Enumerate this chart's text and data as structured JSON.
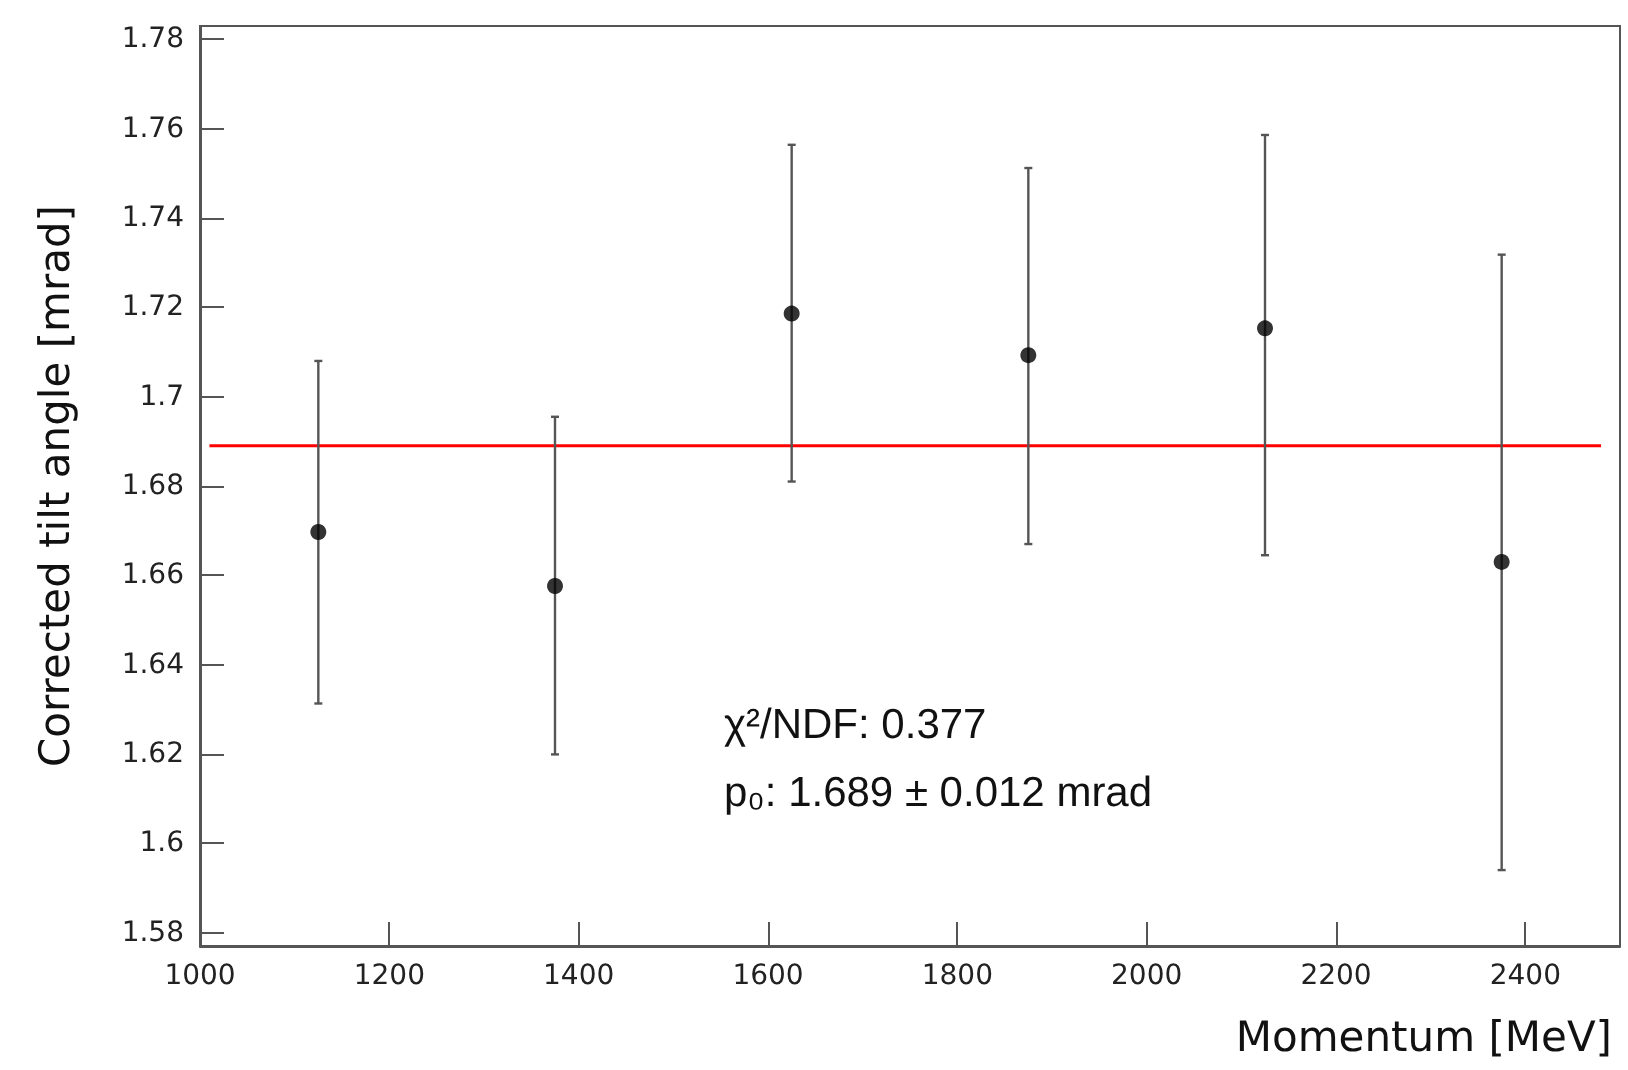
{
  "chart_data": {
    "type": "scatter",
    "xlabel": "Momentum [MeV]",
    "ylabel": "Corrected tilt angle [mrad]",
    "xlim": [
      1000,
      2500
    ],
    "xticks": [
      1000,
      1200,
      1400,
      1600,
      1800,
      2000,
      2200,
      2400
    ],
    "ylim": [
      1.577,
      1.783
    ],
    "yticks": [
      1.58,
      1.6,
      1.62,
      1.64,
      1.66,
      1.68,
      1.7,
      1.72,
      1.74,
      1.76,
      1.78
    ],
    "grid": false,
    "marker": "circle",
    "series": [
      {
        "color": "#000000",
        "x": [
          1125,
          1375,
          1625,
          1875,
          2125,
          2375
        ],
        "values": [
          1.6697,
          1.6576,
          1.7186,
          1.7093,
          1.7153,
          1.663
        ],
        "errors": [
          [
            1.6313,
            1.708
          ],
          [
            1.6199,
            1.6955
          ],
          [
            1.681,
            1.7564
          ],
          [
            1.667,
            1.7512
          ],
          [
            1.6645,
            1.7586
          ],
          [
            1.594,
            1.7318
          ]
        ]
      },
      {
        "type": "line",
        "color": "#ff0000",
        "marker": "none",
        "line_style": "solid",
        "x": [
          1010,
          2480
        ],
        "values": [
          1.689,
          1.689
        ]
      }
    ],
    "annotations": [
      "χ²/NDF: 0.377",
      "p₀: 1.689 ± 0.012 mrad"
    ]
  }
}
